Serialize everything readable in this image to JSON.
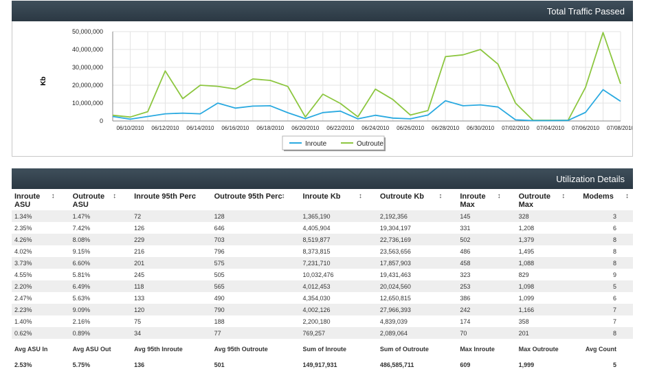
{
  "chart_header": "Total Traffic Passed",
  "util_header": "Utilization Details",
  "chart_data": {
    "type": "line",
    "ylabel": "Kb",
    "ylim": [
      0,
      50000000
    ],
    "yticks": [
      "0",
      "10,000,000",
      "20,000,000",
      "30,000,000",
      "40,000,000",
      "50,000,000"
    ],
    "x": [
      "06/09/2010",
      "06/10/2010",
      "06/11/2010",
      "06/12/2010",
      "06/13/2010",
      "06/14/2010",
      "06/15/2010",
      "06/16/2010",
      "06/17/2010",
      "06/18/2010",
      "06/19/2010",
      "06/20/2010",
      "06/21/2010",
      "06/22/2010",
      "06/23/2010",
      "06/24/2010",
      "06/25/2010",
      "06/26/2010",
      "06/27/2010",
      "06/28/2010",
      "06/29/2010",
      "06/30/2010",
      "07/01/2010",
      "07/02/2010",
      "07/03/2010",
      "07/04/2010",
      "07/05/2010",
      "07/06/2010",
      "07/07/2010",
      "07/08/2010"
    ],
    "xtick_labels": [
      "06/10/2010",
      "06/12/2010",
      "06/14/2010",
      "06/16/2010",
      "06/18/2010",
      "06/20/2010",
      "06/22/2010",
      "06/24/2010",
      "06/26/2010",
      "06/28/2010",
      "06/30/2010",
      "07/02/2010",
      "07/04/2010",
      "07/06/2010",
      "07/08/2010"
    ],
    "series": [
      {
        "name": "Inroute",
        "color": "#29a9e0",
        "values": [
          2500000,
          1000000,
          2500000,
          4000000,
          4400000,
          4000000,
          10000000,
          7200000,
          8300000,
          8500000,
          4600000,
          1300000,
          4700000,
          5500000,
          1200000,
          3200000,
          1600000,
          1200000,
          3300000,
          11300000,
          8500000,
          9000000,
          7800000,
          600000,
          200000,
          200000,
          300000,
          4800000,
          17500000,
          11000000
        ]
      },
      {
        "name": "Outroute",
        "color": "#8cc63f",
        "values": [
          3200000,
          2200000,
          5200000,
          28000000,
          12500000,
          20000000,
          19400000,
          17900000,
          23500000,
          22700000,
          19300000,
          2200000,
          15000000,
          9800000,
          2300000,
          17800000,
          12000000,
          3300000,
          5800000,
          36000000,
          37000000,
          40000000,
          31800000,
          10000000,
          400000,
          400000,
          400000,
          18800000,
          49500000,
          20800000
        ]
      }
    ],
    "legend_position": "bottom"
  },
  "table": {
    "columns": [
      "Inroute ASU",
      "Outroute ASU",
      "Inroute 95th Perc",
      "Outroute 95th Perc",
      "Inroute Kb",
      "Outroute Kb",
      "Inroute Max",
      "Outroute Max",
      "Modems"
    ],
    "rows": [
      [
        "1.34%",
        "1.47%",
        "72",
        "128",
        "1,365,190",
        "2,192,356",
        "145",
        "328",
        "3"
      ],
      [
        "2.35%",
        "7.42%",
        "126",
        "646",
        "4,405,904",
        "19,304,197",
        "331",
        "1,208",
        "6"
      ],
      [
        "4.26%",
        "8.08%",
        "229",
        "703",
        "8,519,877",
        "22,736,169",
        "502",
        "1,379",
        "8"
      ],
      [
        "4.02%",
        "9.15%",
        "216",
        "796",
        "8,373,815",
        "23,563,656",
        "486",
        "1,495",
        "8"
      ],
      [
        "3.73%",
        "6.60%",
        "201",
        "575",
        "7,231,710",
        "17,857,903",
        "458",
        "1,088",
        "8"
      ],
      [
        "4.55%",
        "5.81%",
        "245",
        "505",
        "10,032,476",
        "19,431,463",
        "323",
        "829",
        "9"
      ],
      [
        "2.20%",
        "6.49%",
        "118",
        "565",
        "4,012,453",
        "20,024,560",
        "253",
        "1,098",
        "5"
      ],
      [
        "2.47%",
        "5.63%",
        "133",
        "490",
        "4,354,030",
        "12,650,815",
        "386",
        "1,099",
        "6"
      ],
      [
        "2.23%",
        "9.09%",
        "120",
        "790",
        "4,002,126",
        "27,966,393",
        "242",
        "1,166",
        "7"
      ],
      [
        "1.40%",
        "2.16%",
        "75",
        "188",
        "2,200,180",
        "4,839,039",
        "174",
        "358",
        "7"
      ],
      [
        "0.62%",
        "0.89%",
        "34",
        "77",
        "769,257",
        "2,089,064",
        "70",
        "201",
        "8"
      ]
    ],
    "summary_labels": [
      "Avg ASU In",
      "Avg ASU Out",
      "Avg 95th Inroute",
      "Avg 95th Outroute",
      "Sum of Inroute",
      "Sum of Outroute",
      "Max Inroute",
      "Max Outroute",
      "Avg Count"
    ],
    "summary_values": [
      "2.53%",
      "5.75%",
      "136",
      "501",
      "149,917,931",
      "486,585,711",
      "609",
      "1,999",
      "5"
    ]
  }
}
